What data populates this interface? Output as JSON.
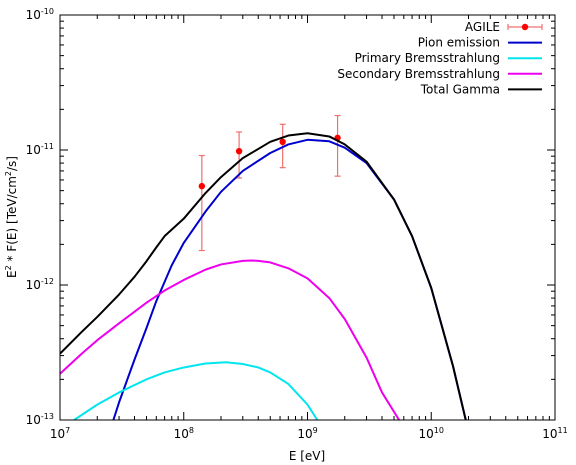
{
  "chart_data": {
    "type": "line",
    "title": "",
    "xlabel": "E [eV]",
    "ylabel": {
      "pre": "E",
      "sup1": "2",
      "mid": " * F(E) [TeV/cm",
      "sup2": "2",
      "post": "/s]"
    },
    "xscale": "log",
    "yscale": "log",
    "xlim": [
      10000000.0,
      100000000000.0
    ],
    "ylim": [
      1e-13,
      1e-10
    ],
    "grid": false,
    "legend_position": "top-right",
    "x_ticks": [
      {
        "base": "10",
        "exp": "7",
        "value": 10000000.0
      },
      {
        "base": "10",
        "exp": "8",
        "value": 100000000.0
      },
      {
        "base": "10",
        "exp": "9",
        "value": 1000000000.0
      },
      {
        "base": "10",
        "exp": "10",
        "value": 10000000000.0
      },
      {
        "base": "10",
        "exp": "11",
        "value": 100000000000.0
      }
    ],
    "y_ticks": [
      {
        "base": "10",
        "exp": "-13",
        "value": 1e-13
      },
      {
        "base": "10",
        "exp": "-12",
        "value": 1e-12
      },
      {
        "base": "10",
        "exp": "-11",
        "value": 1e-11
      },
      {
        "base": "10",
        "exp": "-10",
        "value": 1e-10
      }
    ],
    "series": [
      {
        "name": "AGILE",
        "kind": "errorbar",
        "color": "#ff0000",
        "errorbar_color": "#f07070",
        "points": [
          {
            "x": 140000000.0,
            "y": 5.4e-12,
            "ylo": 1.8e-12,
            "yhi": 9.1e-12
          },
          {
            "x": 280000000.0,
            "y": 9.8e-12,
            "ylo": 6.2e-12,
            "yhi": 1.36e-11
          },
          {
            "x": 630000000.0,
            "y": 1.15e-11,
            "ylo": 7.4e-12,
            "yhi": 1.55e-11
          },
          {
            "x": 1750000000.0,
            "y": 1.23e-11,
            "ylo": 6.4e-12,
            "yhi": 1.8e-11
          }
        ]
      },
      {
        "name": "Pion emission",
        "kind": "line",
        "color": "#0000cc",
        "x": [
          27000000.0,
          30000000.0,
          40000000.0,
          50000000.0,
          60000000.0,
          80000000.0,
          100000000.0,
          150000000.0,
          200000000.0,
          300000000.0,
          500000000.0,
          700000000.0,
          1000000000.0,
          1500000000.0,
          2000000000.0,
          3000000000.0,
          5000000000.0,
          7000000000.0,
          10000000000.0,
          15000000000.0,
          19000000000.0
        ],
        "y": [
          1e-13,
          1.35e-13,
          2.8e-13,
          4.8e-13,
          7.6e-13,
          1.4e-12,
          2.05e-12,
          3.5e-12,
          4.9e-12,
          7e-12,
          9.5e-12,
          1.1e-11,
          1.19e-11,
          1.16e-11,
          1.04e-11,
          8e-12,
          4.3e-12,
          2.3e-12,
          9.5e-13,
          2.5e-13,
          1e-13
        ]
      },
      {
        "name": "Primary Bremsstrahlung",
        "kind": "line",
        "color": "#00e5ee",
        "x": [
          13000000.0,
          20000000.0,
          30000000.0,
          50000000.0,
          70000000.0,
          100000000.0,
          150000000.0,
          220000000.0,
          300000000.0,
          400000000.0,
          500000000.0,
          700000000.0,
          1000000000.0,
          1200000000.0
        ],
        "y": [
          1e-13,
          1.3e-13,
          1.6e-13,
          2e-13,
          2.25e-13,
          2.45e-13,
          2.62e-13,
          2.68e-13,
          2.6e-13,
          2.45e-13,
          2.25e-13,
          1.85e-13,
          1.3e-13,
          1e-13
        ]
      },
      {
        "name": "Secondary Bremsstrahlung",
        "kind": "line",
        "color": "#ee00ee",
        "x": [
          10000000.0,
          15000000.0,
          20000000.0,
          30000000.0,
          50000000.0,
          70000000.0,
          100000000.0,
          150000000.0,
          200000000.0,
          300000000.0,
          350000000.0,
          400000000.0,
          500000000.0,
          700000000.0,
          1000000000.0,
          1500000000.0,
          2000000000.0,
          3000000000.0,
          4000000000.0,
          5500000000.0
        ],
        "y": [
          2.2e-13,
          3.1e-13,
          3.9e-13,
          5.2e-13,
          7.4e-13,
          9.1e-13,
          1.09e-12,
          1.3e-12,
          1.42e-12,
          1.51e-12,
          1.52e-12,
          1.51e-12,
          1.47e-12,
          1.33e-12,
          1.12e-12,
          8e-13,
          5.6e-13,
          2.9e-13,
          1.6e-13,
          1e-13
        ]
      },
      {
        "name": "Total Gamma",
        "kind": "line",
        "color": "#000000",
        "x": [
          10000000.0,
          15000000.0,
          20000000.0,
          30000000.0,
          40000000.0,
          50000000.0,
          60000000.0,
          70000000.0,
          100000000.0,
          150000000.0,
          200000000.0,
          300000000.0,
          500000000.0,
          700000000.0,
          1000000000.0,
          1500000000.0,
          2000000000.0,
          3000000000.0,
          5000000000.0,
          7000000000.0,
          10000000000.0,
          15000000000.0,
          19000000000.0
        ],
        "y": [
          3.1e-13,
          4.5e-13,
          5.8e-13,
          8.5e-13,
          1.15e-12,
          1.5e-12,
          1.9e-12,
          2.3e-12,
          3.1e-12,
          4.8e-12,
          6.3e-12,
          8.7e-12,
          1.15e-11,
          1.28e-11,
          1.33e-11,
          1.26e-11,
          1.1e-11,
          8.2e-12,
          4.3e-12,
          2.3e-12,
          9.5e-13,
          2.5e-13,
          1e-13
        ]
      }
    ]
  }
}
